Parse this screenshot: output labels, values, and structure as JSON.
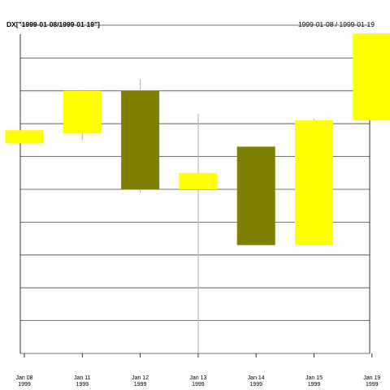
{
  "header": {
    "title": "DX[\"1999-01-08/1999-01-19\"]",
    "date_range": "1999-01-08 / 1999-01-19"
  },
  "chart_data": {
    "type": "candlestick",
    "grid": true,
    "colors": {
      "up": "#ffff00",
      "down": "#808000",
      "wick": "#bbbbbb",
      "grid": "#444444"
    },
    "ylim": [
      0,
      10
    ],
    "candles": [
      {
        "date": "Jan 08",
        "year": "1999",
        "open": 6.4,
        "high": 6.8,
        "low": 6.4,
        "close": 6.8
      },
      {
        "date": "Jan 11",
        "year": "1999",
        "open": 6.7,
        "high": 8.0,
        "low": 6.5,
        "close": 8.0
      },
      {
        "date": "Jan 12",
        "year": "1999",
        "open": 8.0,
        "high": 8.35,
        "low": 4.9,
        "close": 5.0
      },
      {
        "date": "Jan 13",
        "year": "1999",
        "open": 5.0,
        "high": 7.3,
        "low": 0.0,
        "close": 5.5
      },
      {
        "date": "Jan 14",
        "year": "1999",
        "open": 6.3,
        "high": 6.3,
        "low": 3.3,
        "close": 3.3
      },
      {
        "date": "Jan 15",
        "year": "1999",
        "open": 3.3,
        "high": 7.15,
        "low": 3.3,
        "close": 7.1
      },
      {
        "date": "Jan 19",
        "year": "1999",
        "open": 7.1,
        "high": 9.75,
        "low": 7.1,
        "close": 9.75
      }
    ]
  }
}
